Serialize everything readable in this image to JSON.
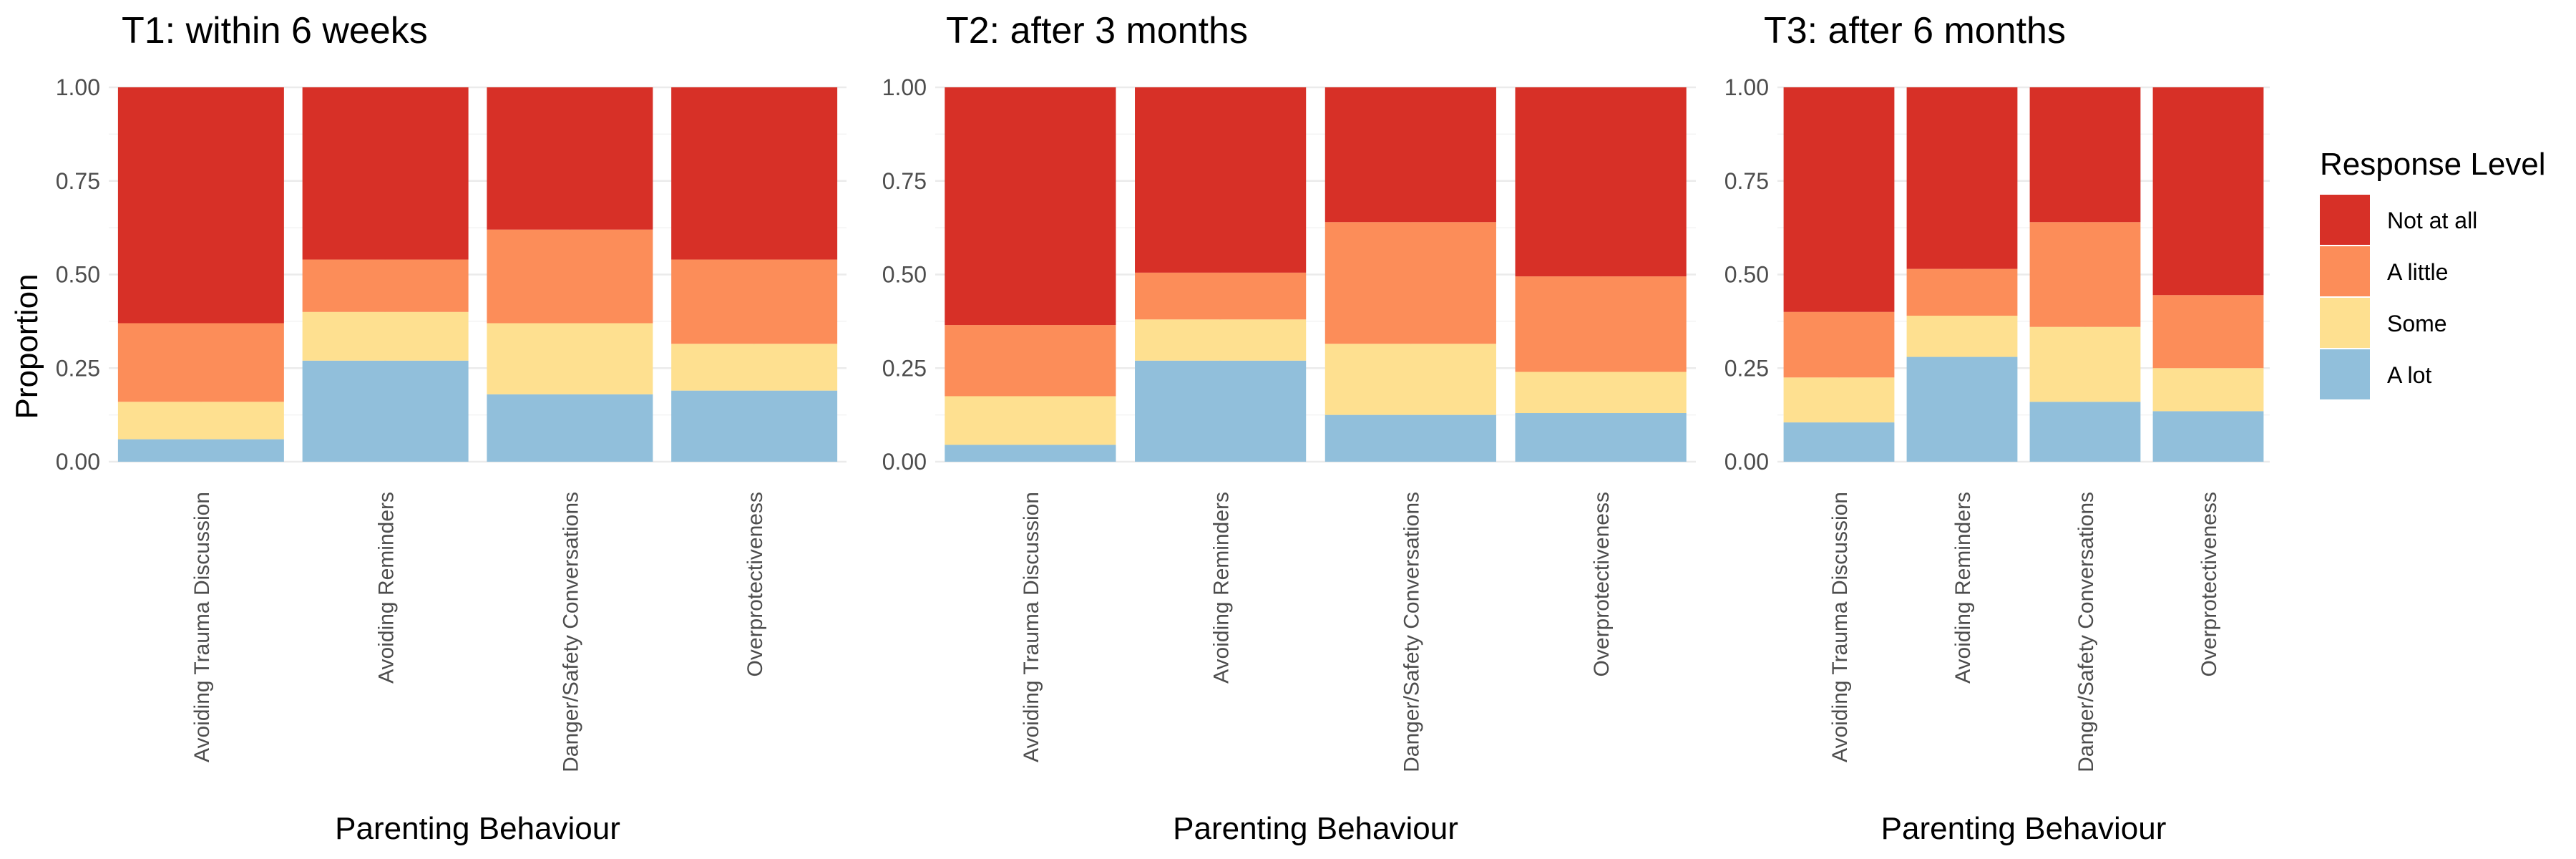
{
  "chart_data": {
    "type": "bar",
    "stacked": true,
    "ylabel": "Proportion",
    "xlabel": "Parenting Behaviour",
    "ylim": [
      0,
      1
    ],
    "yticks": [
      "0.00",
      "0.25",
      "0.50",
      "0.75",
      "1.00"
    ],
    "grid": true,
    "legend": {
      "title": "Response Level",
      "position": "right",
      "items": [
        {
          "label": "Not at all",
          "color": "#d73027"
        },
        {
          "label": "A little",
          "color": "#fc8d59"
        },
        {
          "label": "Some",
          "color": "#fee090"
        },
        {
          "label": "A lot",
          "color": "#91bfdb"
        }
      ]
    },
    "categories": [
      "Avoiding Trauma Discussion",
      "Avoiding Reminders",
      "Danger/Safety Conversations",
      "Overprotectiveness"
    ],
    "panels": [
      {
        "title": "T1: within 6 weeks",
        "series": [
          {
            "name": "A lot",
            "values": [
              0.06,
              0.27,
              0.18,
              0.19
            ]
          },
          {
            "name": "Some",
            "values": [
              0.1,
              0.13,
              0.19,
              0.125
            ]
          },
          {
            "name": "A little",
            "values": [
              0.21,
              0.14,
              0.25,
              0.225
            ]
          },
          {
            "name": "Not at all",
            "values": [
              0.63,
              0.46,
              0.38,
              0.46
            ]
          }
        ]
      },
      {
        "title": "T2: after 3 months",
        "series": [
          {
            "name": "A lot",
            "values": [
              0.045,
              0.27,
              0.125,
              0.13
            ]
          },
          {
            "name": "Some",
            "values": [
              0.13,
              0.11,
              0.19,
              0.11
            ]
          },
          {
            "name": "A little",
            "values": [
              0.19,
              0.125,
              0.325,
              0.255
            ]
          },
          {
            "name": "Not at all",
            "values": [
              0.635,
              0.495,
              0.36,
              0.505
            ]
          }
        ]
      },
      {
        "title": "T3: after 6 months",
        "series": [
          {
            "name": "A lot",
            "values": [
              0.105,
              0.28,
              0.16,
              0.135
            ]
          },
          {
            "name": "Some",
            "values": [
              0.12,
              0.11,
              0.2,
              0.115
            ]
          },
          {
            "name": "A little",
            "values": [
              0.175,
              0.125,
              0.28,
              0.195
            ]
          },
          {
            "name": "Not at all",
            "values": [
              0.6,
              0.485,
              0.36,
              0.555
            ]
          }
        ]
      }
    ]
  }
}
